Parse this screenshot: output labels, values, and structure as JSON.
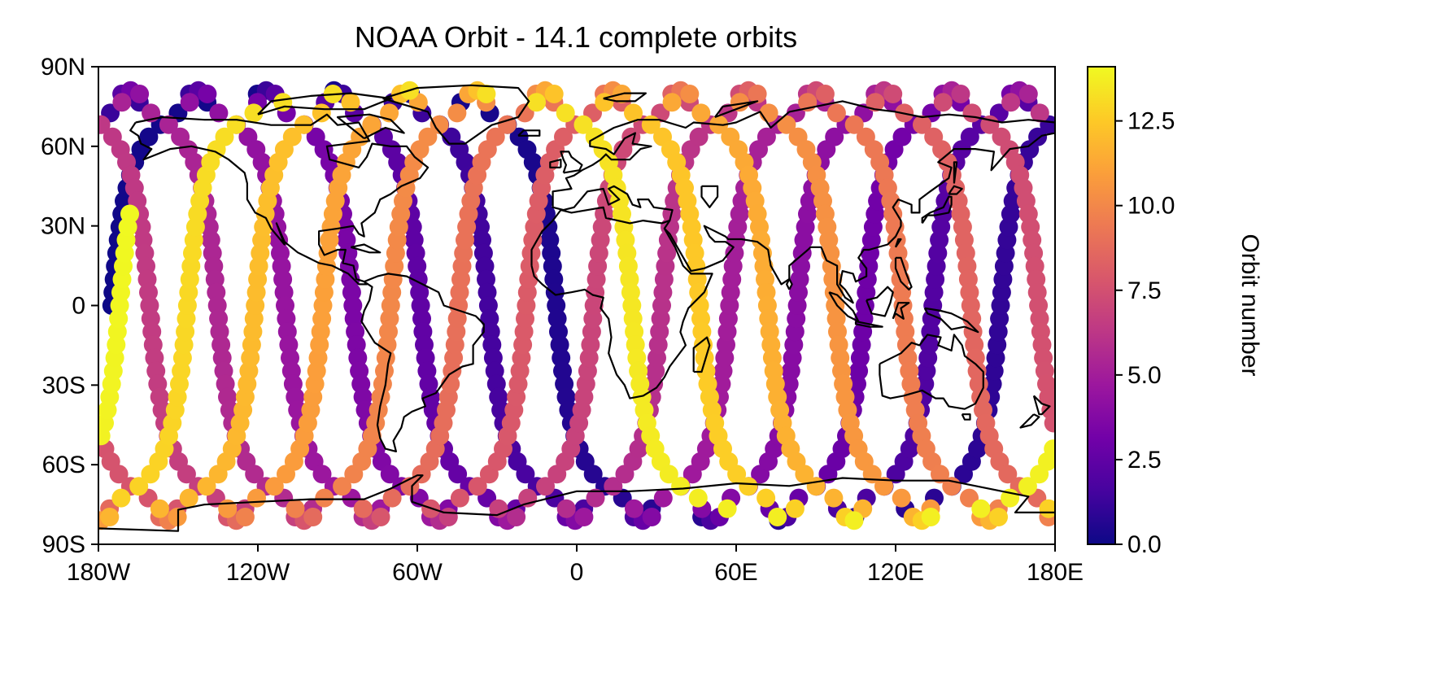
{
  "chart_data": {
    "type": "scatter",
    "title": "NOAA Orbit - 14.1 complete orbits",
    "xlabel": "",
    "ylabel": "",
    "xlim": [
      -180,
      180
    ],
    "ylim": [
      -90,
      90
    ],
    "x_ticks": [
      {
        "value": -180,
        "label": "180W"
      },
      {
        "value": -120,
        "label": "120W"
      },
      {
        "value": -60,
        "label": "60W"
      },
      {
        "value": 0,
        "label": "0"
      },
      {
        "value": 60,
        "label": "60E"
      },
      {
        "value": 120,
        "label": "120E"
      },
      {
        "value": 180,
        "label": "180E"
      }
    ],
    "y_ticks": [
      {
        "value": 90,
        "label": "90N"
      },
      {
        "value": 60,
        "label": "60N"
      },
      {
        "value": 30,
        "label": "30N"
      },
      {
        "value": 0,
        "label": "0"
      },
      {
        "value": -30,
        "label": "30S"
      },
      {
        "value": -60,
        "label": "60S"
      },
      {
        "value": -90,
        "label": "90S"
      }
    ],
    "colorbar": {
      "label": "Orbit number",
      "colormap": "plasma",
      "range": [
        0,
        14.1
      ],
      "ticks": [
        {
          "value": 0,
          "label": "0.0"
        },
        {
          "value": 2.5,
          "label": "2.5"
        },
        {
          "value": 5,
          "label": "5.0"
        },
        {
          "value": 7.5,
          "label": "7.5"
        },
        {
          "value": 10,
          "label": "10.0"
        },
        {
          "value": 12.5,
          "label": "12.5"
        }
      ]
    },
    "orbit": {
      "total_orbits": 14.1,
      "inclination_deg": 81,
      "equator_crossing_lon_orbit0": -175,
      "westward_shift_per_orbit_deg": 25.5,
      "ascending_at_start": true,
      "points_per_orbit": 72
    },
    "coastlines": true
  },
  "colors": {
    "plasma": [
      "#0d0887",
      "#46039f",
      "#7201a8",
      "#9c179e",
      "#bd3786",
      "#d8576b",
      "#ed7953",
      "#fb9f3a",
      "#fdca26",
      "#f0f921"
    ],
    "coastline": "#000000",
    "axis": "#000000"
  }
}
